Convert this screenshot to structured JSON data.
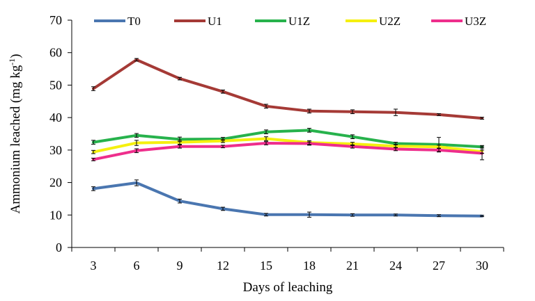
{
  "chart_data": {
    "type": "line",
    "x": [
      3,
      6,
      9,
      12,
      15,
      18,
      21,
      24,
      27,
      30
    ],
    "xlabel": "Days of leaching",
    "ylabel_main": "Ammonium leached (mg kg",
    "ylabel_sup": "-1",
    "ylabel_close": ")",
    "ylim": [
      0,
      70
    ],
    "yticks": [
      0,
      10,
      20,
      30,
      40,
      50,
      60,
      70
    ],
    "grid": false,
    "legend_position": "top",
    "series": [
      {
        "name": "T0",
        "color": "#4a76b0",
        "values": [
          18.1,
          19.9,
          14.3,
          11.9,
          10.1,
          10.1,
          10.0,
          10.0,
          9.8,
          9.7
        ],
        "errors": [
          0.6,
          0.9,
          0.6,
          0.5,
          0.4,
          0.8,
          0.4,
          0.3,
          0.3,
          0.2
        ]
      },
      {
        "name": "U1",
        "color": "#a53a36",
        "values": [
          48.9,
          57.8,
          52.0,
          48.0,
          43.5,
          42.0,
          41.8,
          41.6,
          40.9,
          39.8
        ],
        "errors": [
          0.6,
          0.4,
          0.4,
          0.5,
          0.6,
          0.6,
          0.6,
          1.0,
          0.3,
          0.3
        ]
      },
      {
        "name": "U1Z",
        "color": "#27b24c",
        "values": [
          32.4,
          34.5,
          33.3,
          33.4,
          35.6,
          36.1,
          34.1,
          32.0,
          31.7,
          31.0
        ],
        "errors": [
          0.6,
          0.6,
          0.7,
          0.5,
          0.6,
          0.6,
          0.6,
          0.4,
          2.2,
          0.4
        ]
      },
      {
        "name": "U2Z",
        "color": "#f5f00f",
        "values": [
          29.4,
          32.2,
          32.4,
          32.8,
          33.5,
          32.3,
          31.9,
          31.2,
          31.0,
          29.5
        ],
        "errors": [
          0.5,
          0.8,
          0.6,
          0.5,
          0.6,
          0.6,
          0.5,
          0.5,
          0.5,
          0.5
        ]
      },
      {
        "name": "U3Z",
        "color": "#ee2e8c",
        "values": [
          27.1,
          29.8,
          31.1,
          31.1,
          32.1,
          32.0,
          31.1,
          30.3,
          30.0,
          29.0
        ],
        "errors": [
          0.4,
          0.6,
          0.5,
          0.4,
          0.5,
          0.5,
          0.5,
          0.5,
          0.6,
          2.0
        ]
      }
    ]
  }
}
